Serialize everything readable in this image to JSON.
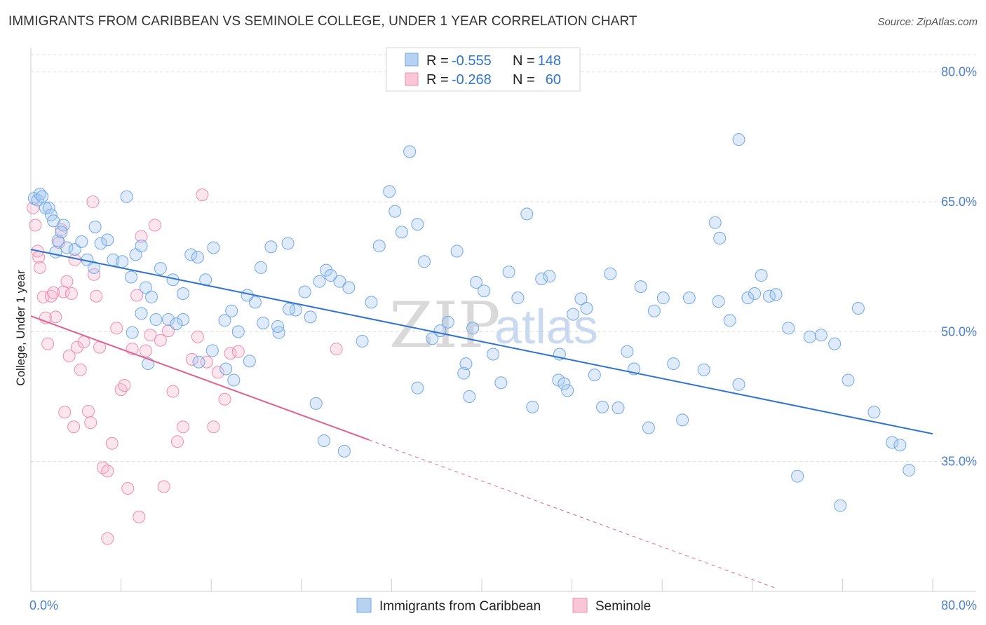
{
  "title": "IMMIGRANTS FROM CARIBBEAN VS SEMINOLE COLLEGE, UNDER 1 YEAR CORRELATION CHART",
  "source": "Source: ZipAtlas.com",
  "watermark": {
    "part1": "ZIP",
    "part2": "atlas"
  },
  "colors": {
    "blue": "#6fa8e6",
    "blue_line": "#2f74cf",
    "pink": "#f08cb0",
    "pink_line": "#e06090",
    "axis_text": "#4a7fcf"
  },
  "chart_data": {
    "type": "scatter",
    "title": "IMMIGRANTS FROM CARIBBEAN VS SEMINOLE COLLEGE, UNDER 1 YEAR CORRELATION CHART",
    "xlabel": "",
    "ylabel": "College, Under 1 year",
    "xlim": [
      0,
      80
    ],
    "ylim": [
      20,
      82
    ],
    "x_tick_labels": {
      "left": "0.0%",
      "right": "80.0%"
    },
    "y_ticks": [
      {
        "value": 80,
        "label": "80.0%"
      },
      {
        "value": 65,
        "label": "65.0%"
      },
      {
        "value": 50,
        "label": "50.0%"
      },
      {
        "value": 35,
        "label": "35.0%"
      }
    ],
    "grid": true,
    "legend_placement": "top-center",
    "legend": [
      {
        "r_label": "R =",
        "r_value": "-0.555",
        "n_label": "N =",
        "n_value": "148"
      },
      {
        "r_label": "R =",
        "r_value": "-0.268",
        "n_label": "N =",
        "n_value": "60"
      }
    ],
    "series": [
      {
        "name": "Immigrants from Caribbean",
        "color": "#6fa8e6",
        "trend": {
          "x0": 0,
          "y0": 59.5,
          "x1": 80,
          "y1": 38.2
        },
        "points": [
          [
            0.3,
            65.4
          ],
          [
            0.6,
            65.2
          ],
          [
            0.8,
            65.9
          ],
          [
            1.0,
            65.6
          ],
          [
            1.3,
            64.3
          ],
          [
            1.6,
            64.3
          ],
          [
            1.8,
            63.5
          ],
          [
            2.0,
            62.8
          ],
          [
            2.9,
            62.3
          ],
          [
            2.2,
            59.2
          ],
          [
            2.4,
            60.5
          ],
          [
            2.7,
            61.5
          ],
          [
            3.2,
            59.7
          ],
          [
            3.9,
            59.5
          ],
          [
            5.7,
            62.1
          ],
          [
            5.0,
            58.3
          ],
          [
            5.6,
            57.4
          ],
          [
            4.5,
            60.4
          ],
          [
            6.2,
            60.2
          ],
          [
            6.8,
            60.6
          ],
          [
            7.3,
            58.3
          ],
          [
            8.1,
            58.1
          ],
          [
            8.5,
            65.6
          ],
          [
            8.9,
            56.3
          ],
          [
            9.3,
            58.9
          ],
          [
            9.8,
            59.9
          ],
          [
            10.2,
            55.1
          ],
          [
            10.7,
            54.0
          ],
          [
            11.5,
            57.3
          ],
          [
            12.2,
            51.4
          ],
          [
            11.1,
            51.4
          ],
          [
            12.6,
            56.0
          ],
          [
            13.5,
            54.4
          ],
          [
            14.2,
            58.9
          ],
          [
            14.8,
            58.6
          ],
          [
            15.5,
            56.0
          ],
          [
            16.2,
            59.7
          ],
          [
            17.2,
            51.3
          ],
          [
            17.8,
            52.4
          ],
          [
            18.4,
            50.0
          ],
          [
            19.2,
            54.2
          ],
          [
            19.9,
            53.4
          ],
          [
            20.4,
            57.4
          ],
          [
            21.3,
            59.8
          ],
          [
            22.0,
            49.9
          ],
          [
            22.8,
            60.2
          ],
          [
            23.5,
            52.5
          ],
          [
            24.3,
            54.6
          ],
          [
            24.8,
            51.7
          ],
          [
            25.6,
            55.8
          ],
          [
            26.2,
            57.1
          ],
          [
            26.6,
            56.5
          ],
          [
            27.4,
            55.8
          ],
          [
            28.2,
            55.1
          ],
          [
            29.4,
            48.9
          ],
          [
            30.2,
            53.4
          ],
          [
            30.9,
            59.9
          ],
          [
            31.8,
            66.2
          ],
          [
            32.3,
            63.9
          ],
          [
            32.9,
            61.5
          ],
          [
            33.6,
            70.8
          ],
          [
            34.3,
            62.4
          ],
          [
            34.9,
            58.1
          ],
          [
            35.6,
            49.2
          ],
          [
            36.3,
            50.1
          ],
          [
            37.0,
            51.1
          ],
          [
            37.8,
            59.3
          ],
          [
            38.4,
            45.2
          ],
          [
            38.9,
            42.5
          ],
          [
            39.5,
            55.7
          ],
          [
            40.2,
            54.7
          ],
          [
            41.0,
            47.4
          ],
          [
            41.7,
            44.1
          ],
          [
            42.4,
            56.9
          ],
          [
            43.2,
            53.9
          ],
          [
            44.0,
            63.6
          ],
          [
            44.5,
            41.3
          ],
          [
            45.3,
            56.1
          ],
          [
            46.0,
            56.4
          ],
          [
            46.8,
            44.4
          ],
          [
            47.3,
            44.0
          ],
          [
            48.1,
            52.0
          ],
          [
            48.8,
            53.8
          ],
          [
            49.3,
            52.7
          ],
          [
            50.0,
            45.0
          ],
          [
            50.7,
            41.3
          ],
          [
            51.4,
            56.7
          ],
          [
            52.1,
            41.2
          ],
          [
            52.9,
            47.7
          ],
          [
            53.5,
            45.7
          ],
          [
            54.1,
            55.2
          ],
          [
            54.8,
            38.9
          ],
          [
            55.3,
            52.4
          ],
          [
            56.1,
            53.9
          ],
          [
            57.0,
            46.3
          ],
          [
            57.8,
            39.8
          ],
          [
            58.4,
            53.9
          ],
          [
            59.7,
            45.6
          ],
          [
            61.0,
            53.5
          ],
          [
            62.0,
            51.3
          ],
          [
            62.8,
            43.9
          ],
          [
            63.6,
            53.9
          ],
          [
            64.2,
            54.4
          ],
          [
            64.8,
            56.5
          ],
          [
            65.5,
            54.1
          ],
          [
            66.1,
            54.3
          ],
          [
            67.2,
            50.4
          ],
          [
            68.0,
            33.3
          ],
          [
            69.1,
            49.4
          ],
          [
            70.1,
            49.6
          ],
          [
            71.3,
            48.6
          ],
          [
            71.8,
            29.9
          ],
          [
            72.5,
            44.4
          ],
          [
            73.4,
            52.7
          ],
          [
            74.8,
            40.7
          ],
          [
            76.4,
            37.2
          ],
          [
            77.1,
            36.9
          ],
          [
            77.9,
            34.0
          ],
          [
            62.8,
            72.2
          ],
          [
            61.1,
            60.8
          ],
          [
            60.7,
            62.6
          ],
          [
            46.9,
            47.4
          ],
          [
            47.6,
            43.2
          ],
          [
            39.2,
            50.4
          ],
          [
            38.6,
            46.3
          ],
          [
            34.3,
            43.5
          ],
          [
            25.3,
            41.7
          ],
          [
            26.0,
            37.4
          ],
          [
            27.8,
            36.2
          ],
          [
            22.9,
            52.6
          ],
          [
            21.9,
            50.6
          ],
          [
            20.6,
            51.0
          ],
          [
            19.4,
            46.6
          ],
          [
            18.0,
            44.4
          ],
          [
            17.3,
            45.7
          ],
          [
            16.1,
            47.8
          ],
          [
            14.9,
            46.5
          ],
          [
            13.5,
            51.4
          ],
          [
            12.9,
            50.9
          ],
          [
            10.4,
            46.3
          ],
          [
            9.0,
            49.9
          ],
          [
            9.8,
            52.1
          ]
        ]
      },
      {
        "name": "Seminole",
        "color": "#f08cb0",
        "trend": {
          "x0": 0,
          "y0": 51.8,
          "x1": 30,
          "y1": 37.5,
          "dash_x1": 66,
          "dash_y1": 20.4
        },
        "points": [
          [
            0.2,
            64.3
          ],
          [
            0.4,
            62.3
          ],
          [
            0.6,
            59.3
          ],
          [
            0.7,
            58.6
          ],
          [
            0.8,
            57.4
          ],
          [
            1.1,
            54.0
          ],
          [
            1.3,
            51.6
          ],
          [
            1.5,
            48.6
          ],
          [
            1.8,
            54.1
          ],
          [
            2.0,
            54.5
          ],
          [
            2.2,
            51.7
          ],
          [
            2.5,
            60.3
          ],
          [
            2.7,
            61.8
          ],
          [
            2.9,
            54.6
          ],
          [
            3.2,
            55.8
          ],
          [
            3.4,
            47.2
          ],
          [
            3.6,
            54.4
          ],
          [
            3.9,
            58.3
          ],
          [
            4.1,
            48.2
          ],
          [
            4.4,
            45.6
          ],
          [
            4.7,
            48.8
          ],
          [
            5.1,
            40.8
          ],
          [
            5.3,
            39.5
          ],
          [
            5.6,
            56.6
          ],
          [
            5.8,
            54.1
          ],
          [
            6.1,
            48.2
          ],
          [
            6.4,
            34.3
          ],
          [
            6.8,
            33.9
          ],
          [
            7.2,
            37.1
          ],
          [
            7.6,
            50.4
          ],
          [
            8.0,
            43.3
          ],
          [
            8.3,
            43.8
          ],
          [
            8.6,
            31.9
          ],
          [
            9.0,
            48.0
          ],
          [
            9.4,
            54.2
          ],
          [
            9.8,
            61.0
          ],
          [
            10.2,
            47.8
          ],
          [
            10.6,
            49.6
          ],
          [
            11.0,
            62.3
          ],
          [
            11.5,
            49.0
          ],
          [
            12.2,
            50.1
          ],
          [
            12.6,
            43.1
          ],
          [
            13.0,
            37.3
          ],
          [
            13.5,
            39.0
          ],
          [
            14.3,
            46.8
          ],
          [
            14.8,
            49.4
          ],
          [
            15.2,
            65.8
          ],
          [
            15.6,
            46.5
          ],
          [
            16.2,
            39.0
          ],
          [
            16.6,
            45.3
          ],
          [
            17.2,
            42.2
          ],
          [
            17.7,
            47.5
          ],
          [
            18.4,
            47.7
          ],
          [
            27.1,
            48.0
          ],
          [
            3.0,
            40.7
          ],
          [
            3.8,
            39.0
          ],
          [
            6.8,
            26.1
          ],
          [
            9.6,
            28.6
          ],
          [
            11.8,
            32.1
          ],
          [
            5.5,
            65.0
          ]
        ]
      }
    ]
  },
  "bottom_legend": {
    "series1": "Immigrants from Caribbean",
    "series2": "Seminole"
  }
}
